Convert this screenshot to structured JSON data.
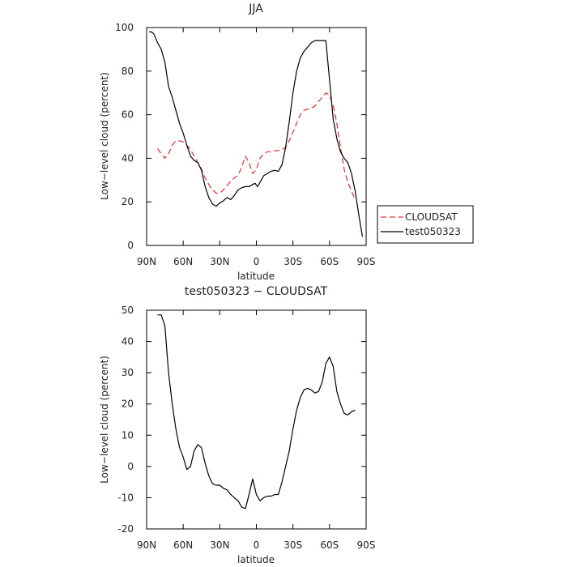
{
  "chart_data": [
    {
      "type": "line",
      "title": "JJA",
      "xlabel": "latitude",
      "ylabel": "Low−level cloud (percent)",
      "xlim": [
        90,
        -90
      ],
      "ylim": [
        0,
        100
      ],
      "xticks": [
        90,
        60,
        30,
        0,
        -30,
        -60,
        -90
      ],
      "xtick_labels": [
        "90N",
        "60N",
        "30N",
        "0",
        "30S",
        "60S",
        "90S"
      ],
      "yticks": [
        0,
        20,
        40,
        60,
        80,
        100
      ],
      "legend": "right, outside plot",
      "grid": false,
      "series": [
        {
          "name": "CLOUDSAT",
          "color": "#e8302f",
          "dash": "dashed",
          "x": [
            81,
            78,
            75,
            72,
            69,
            66,
            63,
            60,
            57,
            54,
            51,
            48,
            45,
            42,
            39,
            36,
            33,
            30,
            27,
            24,
            21,
            18,
            15,
            12,
            9,
            6,
            3,
            0,
            -3,
            -6,
            -9,
            -12,
            -15,
            -18,
            -21,
            -24,
            -27,
            -30,
            -33,
            -36,
            -39,
            -42,
            -45,
            -48,
            -51,
            -54,
            -57,
            -60,
            -63,
            -66,
            -69,
            -72,
            -75,
            -78,
            -81
          ],
          "y": [
            44.5,
            42,
            40,
            42,
            46,
            48,
            48,
            47.5,
            46,
            44,
            41,
            38,
            35,
            31,
            28,
            25.5,
            24,
            24,
            25.5,
            27.5,
            29.5,
            31,
            32,
            36,
            41,
            38,
            33,
            35,
            40,
            42,
            43,
            43,
            43.5,
            43.5,
            44,
            45,
            48,
            52,
            56,
            60,
            62,
            62.5,
            63,
            64,
            66,
            68,
            70,
            69,
            64,
            56,
            45,
            35,
            29,
            25,
            21
          ]
        },
        {
          "name": "test050323",
          "color": "#000000",
          "dash": "solid",
          "x": [
            88,
            86,
            84,
            81,
            78,
            75,
            72,
            69,
            66,
            63,
            60,
            57,
            54,
            51,
            48,
            45,
            42,
            39,
            36,
            33,
            30,
            27,
            24,
            21,
            18,
            15,
            12,
            9,
            6,
            3,
            1,
            -1,
            -3,
            -6,
            -9,
            -12,
            -15,
            -18,
            -21,
            -24,
            -27,
            -30,
            -33,
            -36,
            -39,
            -42,
            -45,
            -48,
            -51,
            -54,
            -57,
            -60,
            -63,
            -66,
            -69,
            -72,
            -75,
            -78,
            -81,
            -84,
            -87
          ],
          "y": [
            98,
            98,
            97,
            93,
            90,
            84,
            73,
            68,
            62,
            56,
            51.5,
            46,
            41,
            39,
            38,
            34.5,
            27,
            22,
            19,
            18,
            19.5,
            20.5,
            22,
            21,
            23,
            25.5,
            26.5,
            27,
            27,
            28,
            28.5,
            27,
            29,
            32,
            33,
            34,
            34.5,
            34,
            37,
            45,
            57,
            70,
            80,
            86,
            89,
            91,
            93,
            94,
            94,
            94,
            94,
            76,
            58,
            49,
            43,
            40,
            38,
            33,
            25,
            14,
            4
          ]
        }
      ]
    },
    {
      "type": "line",
      "title": "test050323 − CLOUDSAT",
      "xlabel": "latitude",
      "ylabel": "Low−level cloud (percent)",
      "xlim": [
        90,
        -90
      ],
      "ylim": [
        -20,
        50
      ],
      "xticks": [
        90,
        60,
        30,
        0,
        -30,
        -60,
        -90
      ],
      "xtick_labels": [
        "90N",
        "60N",
        "30N",
        "0",
        "30S",
        "60S",
        "90S"
      ],
      "yticks": [
        -20,
        -10,
        0,
        10,
        20,
        30,
        40,
        50
      ],
      "grid": false,
      "series": [
        {
          "color": "#000000",
          "dash": "solid",
          "x": [
            81,
            78,
            75,
            72,
            69,
            66,
            63,
            60,
            57,
            54,
            51,
            48,
            45,
            42,
            39,
            36,
            33,
            30,
            27,
            24,
            21,
            18,
            15,
            12,
            9,
            6,
            3,
            0,
            -3,
            -6,
            -9,
            -12,
            -15,
            -18,
            -21,
            -24,
            -27,
            -30,
            -33,
            -36,
            -39,
            -42,
            -45,
            -48,
            -51,
            -54,
            -57,
            -60,
            -63,
            -66,
            -69,
            -72,
            -75,
            -78,
            -81
          ],
          "y": [
            48.5,
            48.5,
            45,
            30,
            20,
            12,
            6,
            3,
            -1,
            0,
            5,
            7,
            6,
            1,
            -3,
            -5.5,
            -6,
            -6,
            -7,
            -7.5,
            -9,
            -10,
            -11,
            -13,
            -13.5,
            -9,
            -4,
            -9,
            -11,
            -10,
            -9.5,
            -9.5,
            -9,
            -9,
            -5,
            0,
            5,
            12,
            18,
            22,
            24.5,
            25,
            24.5,
            23.5,
            24,
            27,
            33,
            35,
            32,
            24,
            20,
            17,
            16.5,
            17.5,
            18
          ]
        }
      ]
    }
  ]
}
